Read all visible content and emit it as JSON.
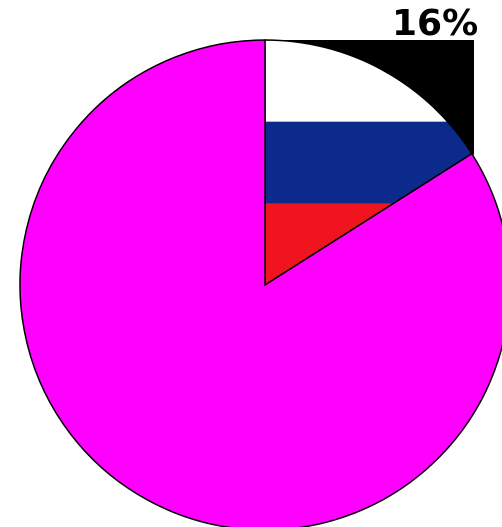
{
  "chart_data": {
    "type": "pie",
    "slices": [
      {
        "label": "",
        "value": 16,
        "color": "flag-russia",
        "percent_label": "16%"
      },
      {
        "label": "",
        "value": 84,
        "color": "#ff00ff"
      }
    ],
    "title": "",
    "legend": "none",
    "flag_colors": [
      "#ffffff",
      "#0c2a8c",
      "#f0141e"
    ],
    "label_text": "16%"
  }
}
